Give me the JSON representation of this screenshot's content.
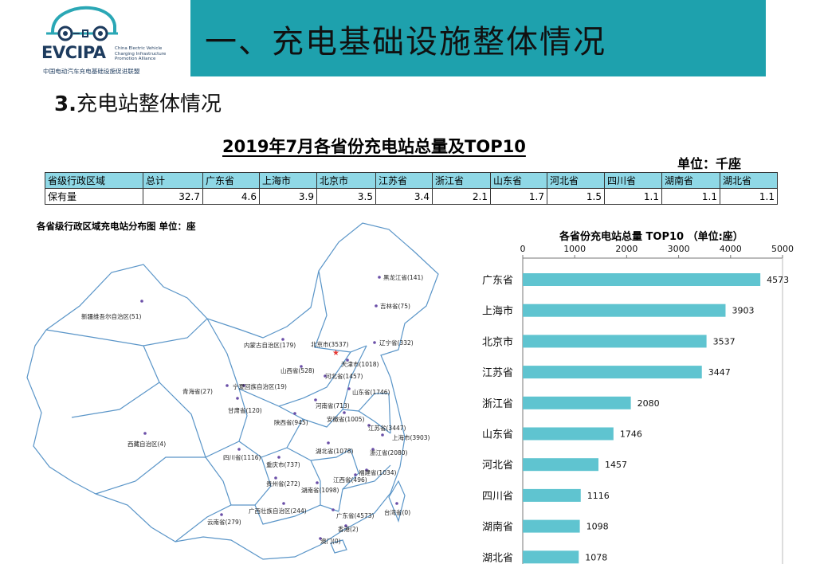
{
  "logo": {
    "brand": "EVCIPA",
    "english": "China Electric Vehicle Charging Infrastructure Promotion Alliance",
    "chinese": "中国电动汽车充电基础设施促进联盟"
  },
  "page_title": "一、充电基础设施整体情况",
  "section_title": {
    "number": "3.",
    "text": "充电站整体情况"
  },
  "table": {
    "title": "2019年7月各省份充电站总量及TOP10",
    "unit": "单位：千座",
    "headers": [
      "省级行政区域",
      "总计",
      "广东省",
      "上海市",
      "北京市",
      "江苏省",
      "浙江省",
      "山东省",
      "河北省",
      "四川省",
      "湖南省",
      "湖北省"
    ],
    "row": [
      "保有量",
      "32.7",
      "4.6",
      "3.9",
      "3.5",
      "3.4",
      "2.1",
      "1.7",
      "1.5",
      "1.1",
      "1.1",
      "1.1"
    ]
  },
  "map": {
    "caption": "各省级行政区域充电站分布图  单位：座",
    "labels": [
      "黑龙江省(141)",
      "吉林省(75)",
      "辽宁省(332)",
      "新疆维吾尔自治区(51)",
      "内蒙古自治区(179)",
      "北京市(3537)",
      "天津市(1018)",
      "河北省(1457)",
      "山西省(528)",
      "山东省(1746)",
      "青海省(27)",
      "宁夏回族自治区(19)",
      "甘肃省(120)",
      "河南省(713)",
      "陕西省(945)",
      "安徽省(1005)",
      "江苏省(3447)",
      "上海市(3903)",
      "西藏自治区(4)",
      "四川省(1116)",
      "湖北省(1078)",
      "浙江省(2080)",
      "重庆市(737)",
      "福建省(1034)",
      "江西省(496)",
      "贵州省(272)",
      "湖南省(1098)",
      "广西壮族自治区(244)",
      "广东省(4573)",
      "台湾省(0)",
      "云南省(279)",
      "香港(2)",
      "澳门(0)"
    ]
  },
  "chart_data": {
    "type": "bar",
    "orientation": "horizontal",
    "title": "各省份充电站总量 TOP10  （单位:座）",
    "categories": [
      "广东省",
      "上海市",
      "北京市",
      "江苏省",
      "浙江省",
      "山东省",
      "河北省",
      "四川省",
      "湖南省",
      "湖北省"
    ],
    "values": [
      4573,
      3903,
      3537,
      3447,
      2080,
      1746,
      1457,
      1116,
      1098,
      1078
    ],
    "xlim": [
      0,
      5000
    ],
    "ticks": [
      0,
      1000,
      2000,
      3000,
      4000,
      5000
    ],
    "axis_position": "top",
    "grid": false,
    "bar_color": "#5fc4d0"
  },
  "colors": {
    "banner": "#1ea1ad",
    "table_header": "#8fd8e6",
    "bar": "#5fc4d0",
    "map_line": "#5a95c8"
  }
}
